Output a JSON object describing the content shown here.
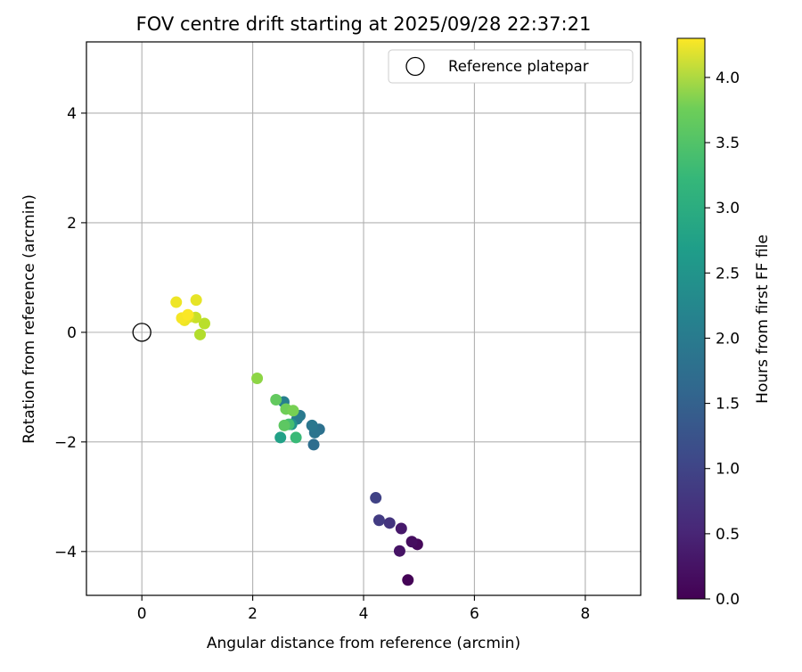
{
  "chart_data": {
    "type": "scatter",
    "title": "FOV centre drift starting at 2025/09/28 22:37:21",
    "xlabel": "Angular distance from reference (arcmin)",
    "ylabel": "Rotation from reference (arcmin)",
    "xlim": [
      -1.0,
      9.0
    ],
    "ylim": [
      -4.8,
      5.3
    ],
    "xticks": [
      0,
      2,
      4,
      6,
      8
    ],
    "xtick_labels": [
      "0",
      "2",
      "4",
      "6",
      "8"
    ],
    "yticks": [
      -4,
      -2,
      0,
      2,
      4
    ],
    "ytick_labels": [
      "−4",
      "−2",
      "0",
      "2",
      "4"
    ],
    "grid": true,
    "legend": {
      "position": "top-right",
      "entries": [
        {
          "label": "Reference platepar",
          "marker": "open-circle"
        }
      ]
    },
    "reference_point": {
      "x": 0,
      "y": 0
    },
    "colorbar": {
      "label": "Hours from first FF file",
      "colormap": "viridis",
      "range": [
        0.0,
        4.3
      ],
      "ticks": [
        0.0,
        0.5,
        1.0,
        1.5,
        2.0,
        2.5,
        3.0,
        3.5,
        4.0
      ],
      "tick_labels": [
        "0.0",
        "0.5",
        "1.0",
        "1.5",
        "2.0",
        "2.5",
        "3.0",
        "3.5",
        "4.0"
      ]
    },
    "points": [
      {
        "x": 4.8,
        "y": -4.52,
        "hours": 0.02
      },
      {
        "x": 4.97,
        "y": -3.87,
        "hours": 0.08
      },
      {
        "x": 4.87,
        "y": -3.82,
        "hours": 0.15
      },
      {
        "x": 4.65,
        "y": -3.99,
        "hours": 0.22
      },
      {
        "x": 4.68,
        "y": -3.58,
        "hours": 0.3
      },
      {
        "x": 4.47,
        "y": -3.48,
        "hours": 0.65
      },
      {
        "x": 4.28,
        "y": -3.43,
        "hours": 0.75
      },
      {
        "x": 4.22,
        "y": -3.02,
        "hours": 0.85
      },
      {
        "x": 3.1,
        "y": -2.05,
        "hours": 1.55
      },
      {
        "x": 3.2,
        "y": -1.77,
        "hours": 1.6
      },
      {
        "x": 3.12,
        "y": -1.83,
        "hours": 1.65
      },
      {
        "x": 3.07,
        "y": -1.7,
        "hours": 1.7
      },
      {
        "x": 2.85,
        "y": -1.52,
        "hours": 1.75
      },
      {
        "x": 2.8,
        "y": -1.58,
        "hours": 1.8
      },
      {
        "x": 2.56,
        "y": -1.27,
        "hours": 1.85
      },
      {
        "x": 2.7,
        "y": -1.68,
        "hours": 2.2
      },
      {
        "x": 2.5,
        "y": -1.92,
        "hours": 2.45
      },
      {
        "x": 2.78,
        "y": -1.92,
        "hours": 2.9
      },
      {
        "x": 2.65,
        "y": -1.68,
        "hours": 3.0
      },
      {
        "x": 2.57,
        "y": -1.7,
        "hours": 3.2
      },
      {
        "x": 2.42,
        "y": -1.23,
        "hours": 3.25
      },
      {
        "x": 2.6,
        "y": -1.4,
        "hours": 3.35
      },
      {
        "x": 2.73,
        "y": -1.43,
        "hours": 3.4
      },
      {
        "x": 2.08,
        "y": -0.84,
        "hours": 3.55
      },
      {
        "x": 1.05,
        "y": -0.04,
        "hours": 3.8
      },
      {
        "x": 1.13,
        "y": 0.16,
        "hours": 3.85
      },
      {
        "x": 0.97,
        "y": 0.27,
        "hours": 3.95
      },
      {
        "x": 0.85,
        "y": 0.28,
        "hours": 4.05
      },
      {
        "x": 0.98,
        "y": 0.59,
        "hours": 4.15
      },
      {
        "x": 0.62,
        "y": 0.55,
        "hours": 4.2
      },
      {
        "x": 0.77,
        "y": 0.22,
        "hours": 4.2
      },
      {
        "x": 0.72,
        "y": 0.26,
        "hours": 4.25
      },
      {
        "x": 0.83,
        "y": 0.32,
        "hours": 4.28
      }
    ]
  }
}
